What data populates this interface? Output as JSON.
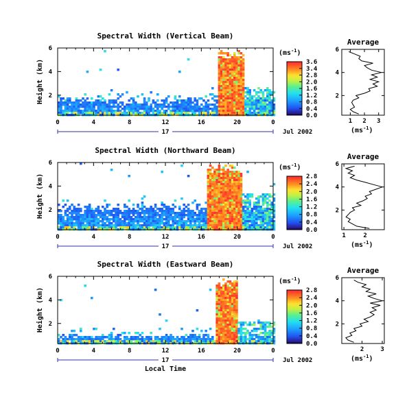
{
  "chart_data": [
    {
      "type": "heatmap",
      "title": "Spectral Width (Vertical Beam)",
      "ylabel": "Height (km)",
      "x_ticks": [
        "0",
        "4",
        "8",
        "12",
        "16",
        "20",
        "0"
      ],
      "xlim": [
        0,
        24
      ],
      "y_ticks": [
        "6",
        "4",
        "2"
      ],
      "ylim": [
        0.3,
        6
      ],
      "date_day": "17",
      "date_label": "Jul 2002",
      "colorbar": {
        "label": "(ms",
        "label_exp": "-1",
        "label_close": ")",
        "ticks": [
          "3.6",
          "3.4",
          "2.8",
          "2.0",
          "1.6",
          "1.2",
          "0.8",
          "0.4",
          "0.0"
        ],
        "range": [
          0,
          3.6
        ]
      },
      "features": {
        "bl_top_km": 1.6,
        "convection_start_h": 17.7,
        "convection_end_h": 20.6,
        "convection_top_km": 6.0
      },
      "profile": {
        "title": "Average",
        "xlabel": "(ms",
        "xlabel_exp": "-1",
        "xlabel_close": ")",
        "x_ticks": [
          "1",
          "2",
          "3"
        ],
        "xlim": [
          0.4,
          3.4
        ],
        "y_ticks": [
          "6",
          "4",
          "2"
        ],
        "ylim": [
          0.3,
          6
        ],
        "height_km": [
          0.4,
          0.6,
          0.8,
          1.0,
          1.2,
          1.4,
          1.6,
          1.8,
          2.0,
          2.2,
          2.4,
          2.6,
          2.8,
          3.0,
          3.2,
          3.4,
          3.6,
          3.8,
          4.0,
          4.2,
          4.4,
          4.6,
          4.8,
          5.0,
          5.2,
          5.4,
          5.6,
          5.8
        ],
        "width_ms": [
          1.6,
          1.2,
          1.0,
          1.3,
          1.2,
          1.1,
          1.2,
          1.6,
          1.4,
          2.0,
          2.4,
          2.3,
          2.9,
          2.6,
          3.0,
          2.4,
          2.9,
          2.5,
          3.2,
          2.5,
          2.2,
          2.0,
          2.6,
          1.8,
          1.6,
          1.7,
          1.3,
          0.9
        ]
      }
    },
    {
      "type": "heatmap",
      "title": "Spectral Width (Northward Beam)",
      "ylabel": "Height (km)",
      "x_ticks": [
        "0",
        "4",
        "8",
        "12",
        "16",
        "20",
        "0"
      ],
      "xlim": [
        0,
        24
      ],
      "y_ticks": [
        "6",
        "4",
        "2"
      ],
      "ylim": [
        0.3,
        6
      ],
      "date_day": "17",
      "date_label": "Jul 2002",
      "colorbar": {
        "label": "(ms",
        "label_exp": "-1",
        "label_close": ")",
        "ticks": [
          "2.8",
          "2.4",
          "2.0",
          "1.6",
          "1.2",
          "0.8",
          "0.4",
          "0.0"
        ],
        "range": [
          0,
          2.8
        ]
      },
      "features": {
        "bl_top_km": 2.2,
        "convection_start_h": 16.6,
        "convection_end_h": 20.4,
        "convection_top_km": 6.0
      },
      "profile": {
        "title": "Average",
        "xlabel": "(ms",
        "xlabel_exp": "-1",
        "xlabel_close": ")",
        "x_ticks": [
          "1",
          "2"
        ],
        "xlim": [
          0.9,
          2.9
        ],
        "y_ticks": [
          "6",
          "4",
          "2"
        ],
        "ylim": [
          0.3,
          6
        ],
        "height_km": [
          0.4,
          0.6,
          0.8,
          1.0,
          1.2,
          1.4,
          1.6,
          1.8,
          2.0,
          2.2,
          2.4,
          2.6,
          2.8,
          3.0,
          3.2,
          3.4,
          3.6,
          3.8,
          4.0,
          4.2,
          4.4,
          4.6,
          4.8,
          5.0,
          5.2,
          5.4,
          5.6,
          5.8
        ],
        "width_ms": [
          2.2,
          1.6,
          1.4,
          1.2,
          1.3,
          1.1,
          1.2,
          1.3,
          1.5,
          1.4,
          1.8,
          1.6,
          1.9,
          2.1,
          2.0,
          2.3,
          2.2,
          2.5,
          2.8,
          2.4,
          2.0,
          1.6,
          1.3,
          1.5,
          1.2,
          1.4,
          1.1,
          1.5
        ]
      }
    },
    {
      "type": "heatmap",
      "title": "Spectral Width (Eastward Beam)",
      "ylabel": "Height (km)",
      "xlabel": "Local Time",
      "x_ticks": [
        "0",
        "4",
        "8",
        "12",
        "16",
        "20",
        "0"
      ],
      "xlim": [
        0,
        24
      ],
      "y_ticks": [
        "6",
        "4",
        "2"
      ],
      "ylim": [
        0.3,
        6
      ],
      "date_day": "17",
      "date_label": "Jul 2002",
      "colorbar": {
        "label": "(ms",
        "label_exp": "-1",
        "label_close": ")",
        "ticks": [
          "2.8",
          "2.4",
          "2.0",
          "1.6",
          "1.2",
          "0.8",
          "0.4",
          "0.0"
        ],
        "range": [
          0,
          2.8
        ]
      },
      "features": {
        "bl_top_km": 1.0,
        "convection_start_h": 17.4,
        "convection_end_h": 20.0,
        "convection_top_km": 6.0
      },
      "profile": {
        "title": "Average",
        "xlabel": "(ms",
        "xlabel_exp": "-1",
        "xlabel_close": ")",
        "x_ticks": [
          "2",
          "3"
        ],
        "xlim": [
          1.0,
          3.1
        ],
        "y_ticks": [
          "6",
          "4",
          "2"
        ],
        "ylim": [
          0.3,
          6
        ],
        "height_km": [
          0.4,
          0.6,
          0.8,
          1.0,
          1.2,
          1.4,
          1.6,
          1.8,
          2.0,
          2.2,
          2.4,
          2.6,
          2.8,
          3.0,
          3.2,
          3.4,
          3.6,
          3.8,
          4.0,
          4.2,
          4.4,
          4.6,
          4.8,
          5.0,
          5.2,
          5.4,
          5.6,
          5.8
        ],
        "width_ms": [
          1.6,
          1.3,
          1.2,
          1.5,
          1.4,
          1.7,
          1.6,
          2.0,
          1.9,
          2.3,
          2.1,
          2.4,
          2.6,
          2.4,
          2.7,
          2.5,
          2.9,
          2.4,
          3.0,
          2.6,
          2.3,
          2.7,
          2.2,
          2.4,
          2.0,
          2.2,
          1.8,
          1.6
        ]
      }
    }
  ]
}
